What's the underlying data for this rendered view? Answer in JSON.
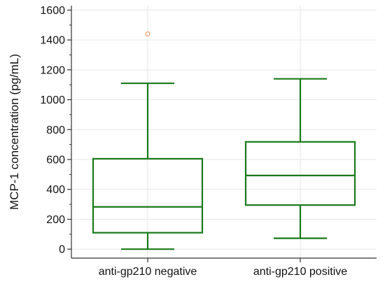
{
  "chart_data": {
    "type": "box",
    "title": "",
    "xlabel": "",
    "ylabel": "MCP-1 concentration (pg/mL)",
    "ylim": [
      -60,
      1630
    ],
    "yticks": [
      0,
      200,
      400,
      600,
      800,
      1000,
      1200,
      1400,
      1600
    ],
    "ytick_labels": [
      "0",
      "200",
      "400",
      "600",
      "800",
      "1000",
      "1200",
      "1400",
      "1600"
    ],
    "grid": true,
    "categories": [
      "anti-gp210 negative",
      "anti-gp210 positive"
    ],
    "boxes": [
      {
        "category": "anti-gp210 negative",
        "whisker_low": 0,
        "q1": 110,
        "median": 283,
        "q3": 605,
        "whisker_high": 1110,
        "outliers": [
          1440
        ]
      },
      {
        "category": "anti-gp210 positive",
        "whisker_low": 73,
        "q1": 295,
        "median": 493,
        "q3": 718,
        "whisker_high": 1140,
        "outliers": []
      }
    ],
    "colors": {
      "box": "#1a7a1a",
      "outlier": "#f0a070",
      "grid": "#e6e6e6",
      "axis": "#333333"
    }
  }
}
